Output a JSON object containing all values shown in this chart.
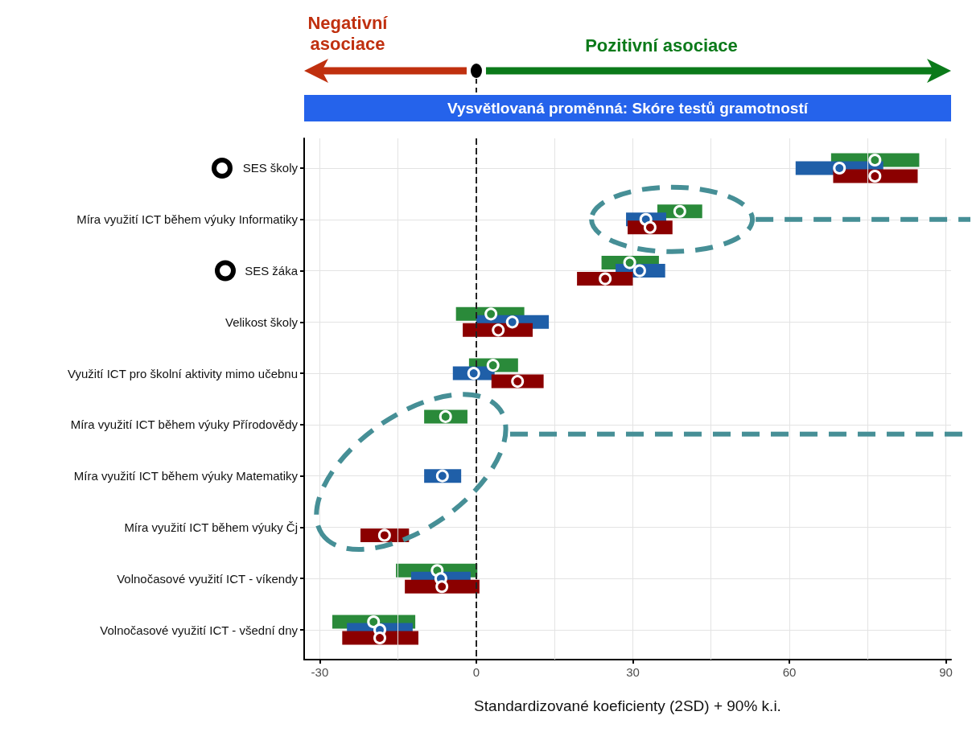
{
  "chart_data": {
    "type": "bar",
    "orientation": "horizontal",
    "title": "Vysvětlovaná proměnná: Skóre testů gramotností",
    "xlabel": "Standardizované koeficienty (2SD) + 90% k.i.",
    "annotations": [
      "Negativní asociace",
      "Pozitivní asociace"
    ],
    "categories": [
      "SES školy",
      "Míra využití ICT během výuky Informatiky",
      "SES žáka",
      "Velikost školy",
      "Využití ICT pro školní aktivity mimo učebnu",
      "Míra využití ICT během výuky Přírodovědy",
      "Míra využití ICT během výuky Matematiky",
      "Míra využití ICT během výuky Čj",
      "Volnočasové využití ICT - víkendy",
      "Volnočasové využití ICT - všední dny"
    ],
    "xlim": [
      -33,
      91
    ],
    "xticks": [
      -30,
      {
        "value": -15,
        "label": null
      },
      0,
      {
        "value": 15,
        "label": null
      },
      30,
      {
        "value": 45,
        "label": null
      },
      60,
      {
        "value": 75,
        "label": null
      },
      90
    ],
    "grid": true,
    "marker": "circle",
    "ref_lines": [
      {
        "axis": "x",
        "value": 0,
        "line_style": "dashed",
        "color": "#222222"
      }
    ],
    "series": [
      {
        "color": "#2a8a3a",
        "base": [
          68.0,
          34.7,
          24.0,
          -3.9,
          -1.4,
          -10.0,
          null,
          null,
          -15.4,
          -27.6
        ],
        "values": [
          16.9,
          8.6,
          11.0,
          13.1,
          9.4,
          8.3,
          null,
          null,
          15.6,
          15.9
        ]
      },
      {
        "color": "#1f5fa8",
        "base": [
          61.2,
          28.7,
          26.7,
          0.0,
          -4.5,
          null,
          -10.0,
          null,
          -12.5,
          -24.8
        ],
        "values": [
          16.8,
          7.7,
          9.5,
          13.9,
          8.0,
          null,
          7.1,
          null,
          11.4,
          12.6
        ]
      },
      {
        "color": "#8b0000",
        "base": [
          68.4,
          29.0,
          19.3,
          -2.6,
          2.9,
          null,
          null,
          -22.2,
          -13.7,
          -25.7
        ],
        "values": [
          16.2,
          8.6,
          10.7,
          13.4,
          10.0,
          null,
          null,
          9.3,
          14.3,
          14.6
        ]
      },
      {
        "type": "scatter",
        "color": "#2a8a3a",
        "values": [
          76.4,
          39.0,
          29.4,
          2.8,
          3.2,
          -5.9,
          null,
          null,
          -7.5,
          -19.7
        ]
      },
      {
        "type": "scatter",
        "color": "#1f5fa8",
        "values": [
          69.6,
          32.5,
          31.3,
          6.9,
          -0.5,
          null,
          -6.5,
          null,
          -6.8,
          -18.5
        ]
      },
      {
        "type": "scatter",
        "color": "#8b0000",
        "values": [
          76.4,
          33.3,
          24.7,
          4.2,
          7.9,
          null,
          null,
          -17.6,
          -6.6,
          -18.5
        ]
      }
    ]
  }
}
